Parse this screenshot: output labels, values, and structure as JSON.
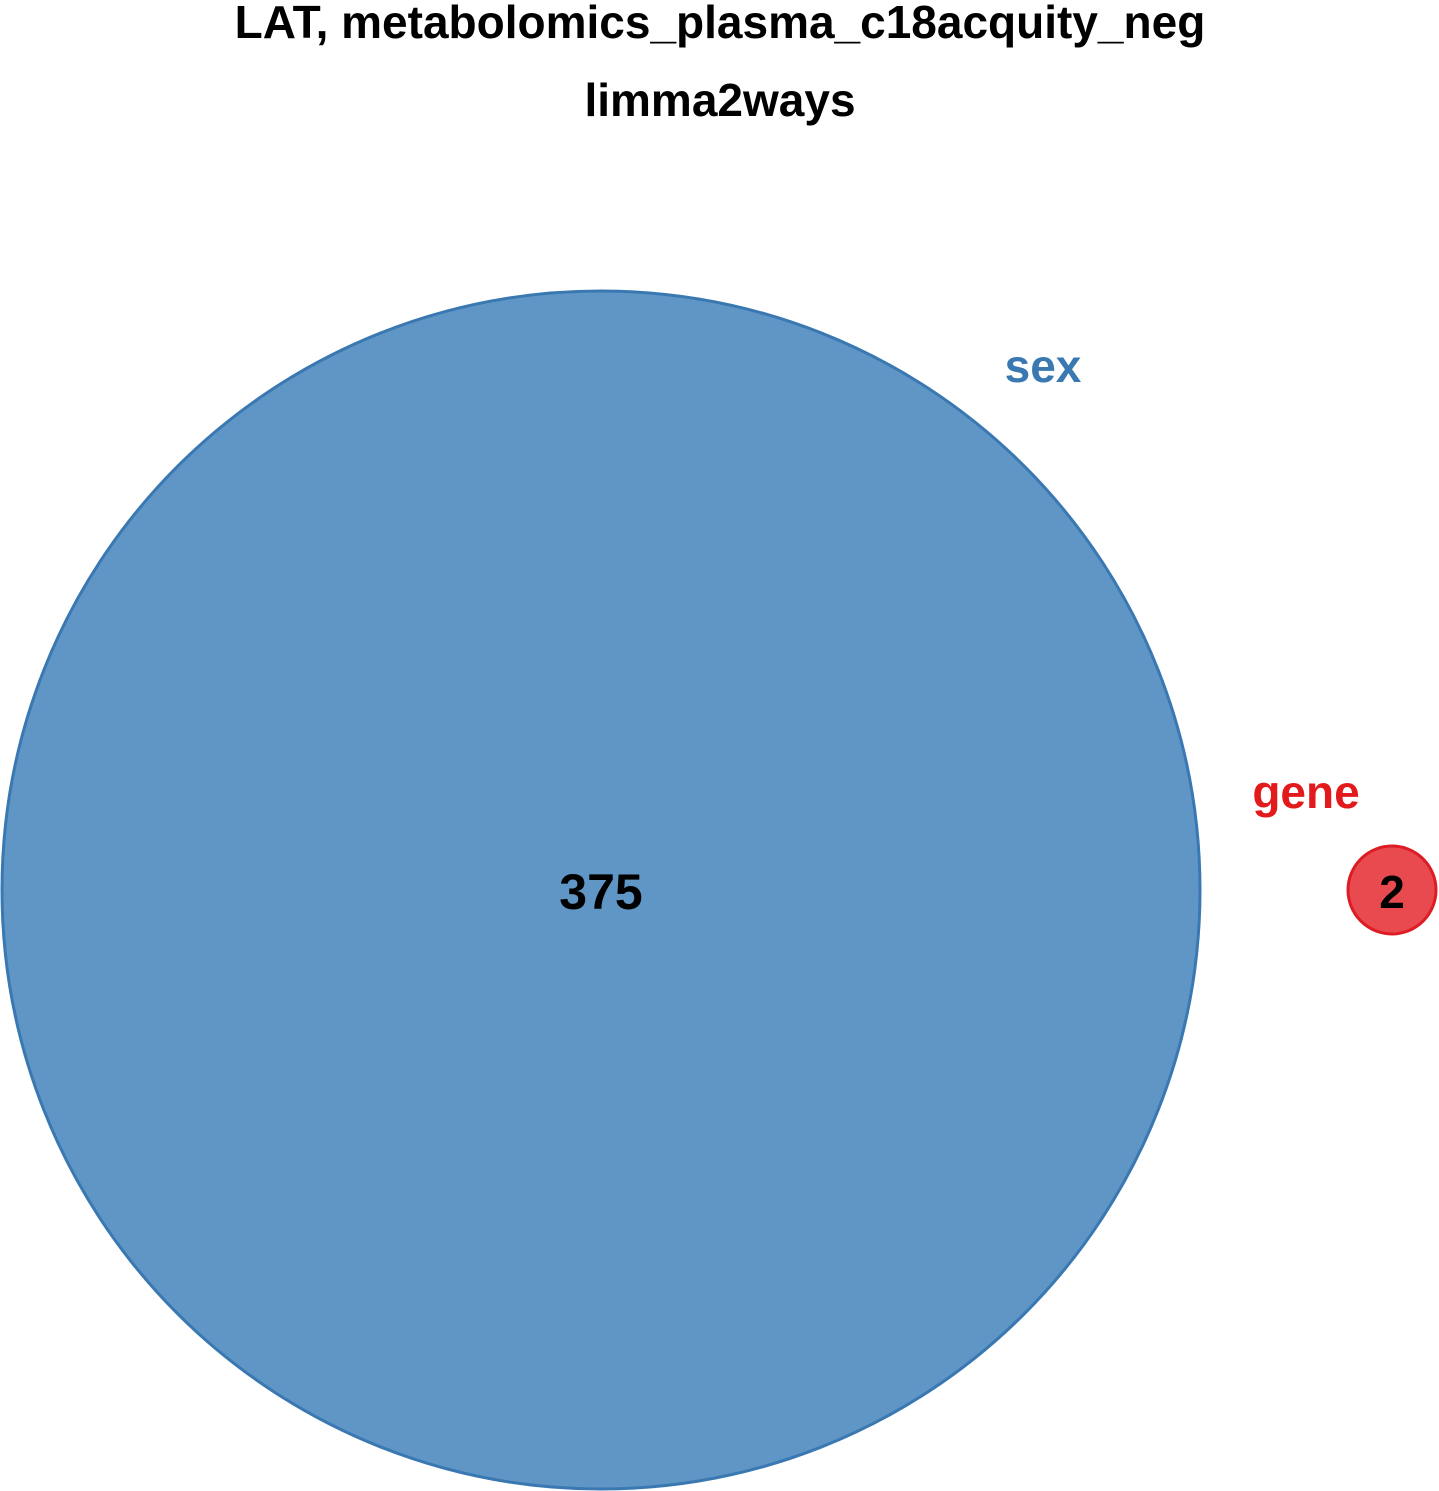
{
  "title": {
    "line1": "LAT, metabolomics_plasma_c18acquity_neg",
    "line2": "limma2ways"
  },
  "sets": [
    {
      "name": "sex",
      "count": 375,
      "fill_color": "#5F96C5",
      "stroke_color": "#3A78B2",
      "label_color": "#3A78B2"
    },
    {
      "name": "gene",
      "count": 2,
      "fill_color": "#E84A4F",
      "stroke_color": "#DD1C24",
      "label_color": "#E31A1C"
    }
  ],
  "overlap_count": 0
}
